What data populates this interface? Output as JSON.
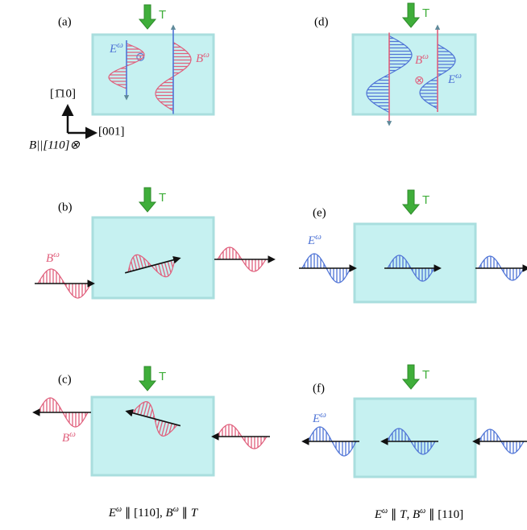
{
  "panel_labels": [
    "(a)",
    "(b)",
    "(c)",
    "(d)",
    "(e)",
    "(f)"
  ],
  "thermal_label": "T",
  "E_field": {
    "base": "E",
    "sup": "ω"
  },
  "B_field": {
    "base": "B",
    "sup": "ω"
  },
  "dot_symbol": "⊙",
  "cross_symbol": "⊗",
  "axes": {
    "vertical": "[1̄10]",
    "horizontal": "[001]",
    "field": "B||[110]⊗"
  },
  "captions": [
    [
      {
        "text": "E"
      },
      {
        "text": "ω",
        "sup": true
      },
      {
        "text": " ∥ [110], "
      },
      {
        "text": "B"
      },
      {
        "text": "ω",
        "sup": true
      },
      {
        "text": " ∥ "
      },
      {
        "text": "T"
      }
    ],
    [
      {
        "text": "E"
      },
      {
        "text": "ω",
        "sup": true
      },
      {
        "text": " ∥ "
      },
      {
        "text": "T"
      },
      {
        "text": ", "
      },
      {
        "text": "B"
      },
      {
        "text": "ω",
        "sup": true
      },
      {
        "text": " ∥ [110]"
      }
    ]
  ]
}
